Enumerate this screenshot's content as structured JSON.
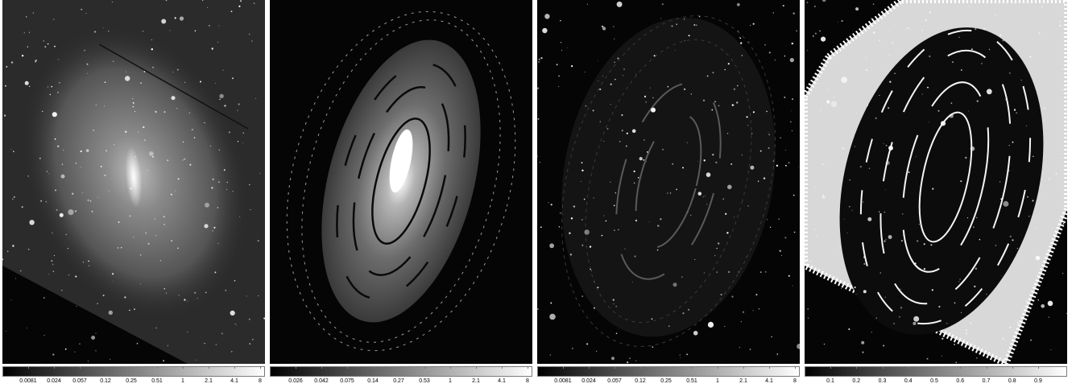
{
  "panels": [
    {
      "id": "observed",
      "colorbar": {
        "from": "#000000",
        "to": "#ffffff",
        "labels": [
          "0.0081",
          "0.024",
          "0.057",
          "0.12",
          "0.25",
          "0.51",
          "1",
          "2.1",
          "4.1",
          "8"
        ]
      }
    },
    {
      "id": "model",
      "colorbar": {
        "from": "#000000",
        "to": "#ffffff",
        "labels": [
          "0.026",
          "0.042",
          "0.075",
          "0.14",
          "0.27",
          "0.53",
          "1",
          "2.1",
          "4.1",
          "8"
        ]
      }
    },
    {
      "id": "residual",
      "colorbar": {
        "from": "#000000",
        "to": "#ffffff",
        "labels": [
          "0.0081",
          "0.024",
          "0.057",
          "0.12",
          "0.25",
          "0.51",
          "1",
          "2.1",
          "4.1",
          "8"
        ]
      }
    },
    {
      "id": "relative-residual",
      "colorbar": {
        "from": "#000000",
        "to": "#ffffff",
        "labels": [
          "0.1",
          "0.2",
          "0.3",
          "0.4",
          "0.5",
          "0.6",
          "0.7",
          "0.8",
          "0.9"
        ]
      }
    }
  ]
}
